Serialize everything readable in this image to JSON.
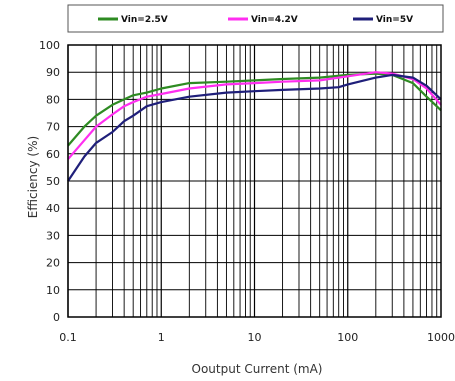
{
  "chart_data": {
    "type": "line",
    "xlabel": "Ooutput Current (mA)",
    "ylabel": "Efficiency (%)",
    "x_scale": "log",
    "xlim": [
      0.1,
      1000
    ],
    "ylim": [
      0,
      100
    ],
    "x_ticks": [
      "0.1",
      "1",
      "10",
      "100",
      "1000"
    ],
    "y_ticks": [
      "0",
      "10",
      "20",
      "30",
      "40",
      "50",
      "60",
      "70",
      "80",
      "90",
      "100"
    ],
    "grid": true,
    "legend_position": "top",
    "series": [
      {
        "name": "Vin=2.5V",
        "color": "#2e8b22",
        "x": [
          0.1,
          0.15,
          0.2,
          0.3,
          0.4,
          0.5,
          0.7,
          1,
          2,
          5,
          10,
          20,
          50,
          100,
          200,
          300,
          500,
          700,
          1000
        ],
        "y": [
          63,
          70,
          74,
          78,
          80,
          81.5,
          82.5,
          84,
          86,
          86.5,
          87,
          87.5,
          88,
          89,
          89.5,
          89,
          86,
          81,
          76
        ]
      },
      {
        "name": "Vin=4.2V",
        "color": "#ff2ef0",
        "x": [
          0.1,
          0.15,
          0.2,
          0.3,
          0.4,
          0.5,
          0.7,
          1,
          2,
          5,
          10,
          20,
          50,
          100,
          200,
          300,
          500,
          700,
          1000
        ],
        "y": [
          58,
          65,
          70,
          74.5,
          77.5,
          79,
          81,
          82,
          84,
          85.5,
          86,
          86.5,
          87,
          88.5,
          90,
          89.5,
          87.5,
          84,
          78
        ]
      },
      {
        "name": "Vin=5V",
        "color": "#1f1f7a",
        "x": [
          0.1,
          0.15,
          0.2,
          0.3,
          0.4,
          0.5,
          0.7,
          1,
          2,
          5,
          10,
          20,
          50,
          80,
          100,
          200,
          300,
          500,
          700,
          1000
        ],
        "y": [
          50,
          59,
          64,
          68,
          72,
          74,
          77.5,
          79,
          81,
          82.5,
          83,
          83.5,
          84,
          84.5,
          85.5,
          88,
          89,
          88,
          85,
          80
        ]
      }
    ]
  }
}
